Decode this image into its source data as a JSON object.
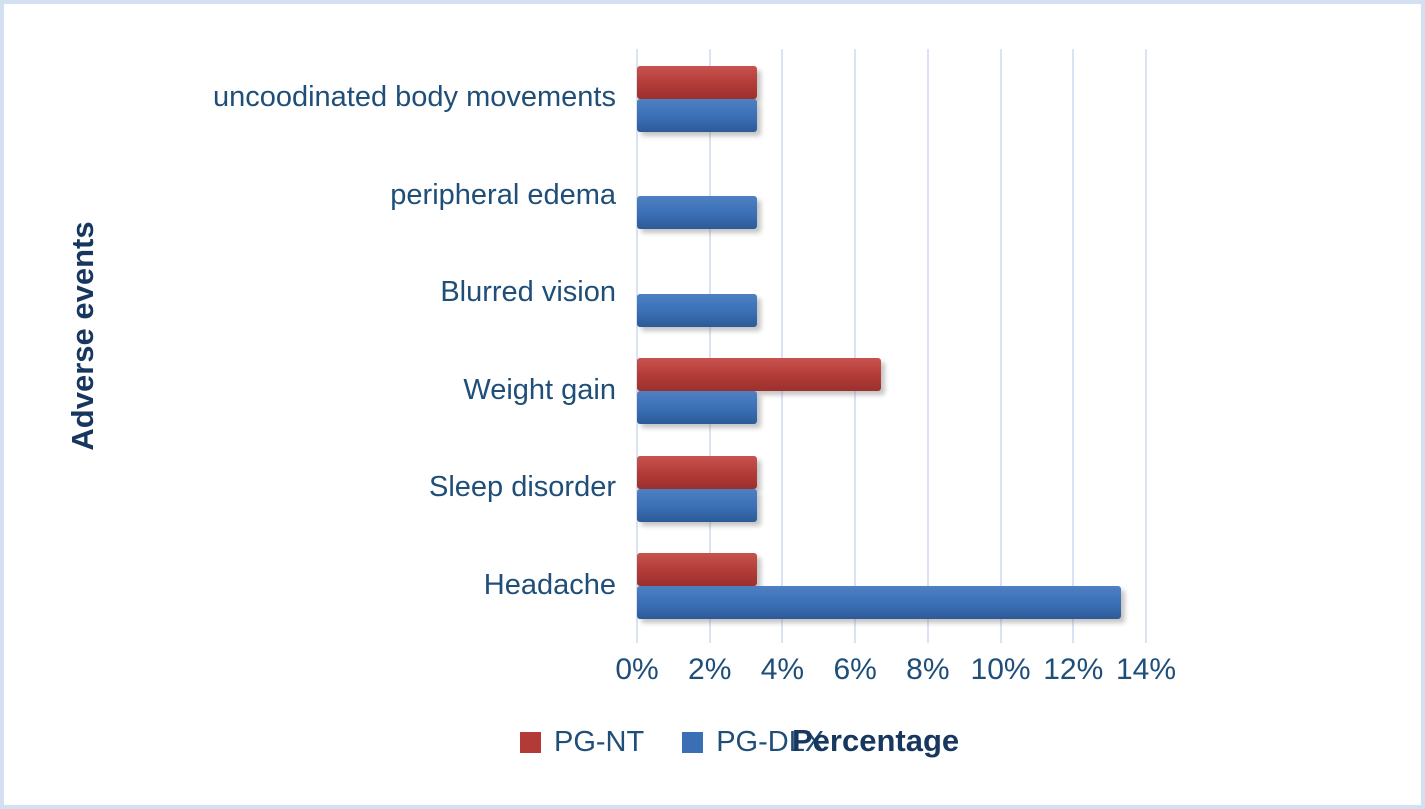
{
  "frame": {
    "border_color": "#D3E0F2",
    "background_color": "#FFFFFF"
  },
  "chart_data": {
    "type": "bar",
    "orientation": "horizontal",
    "title": "",
    "xlabel": "Percentage",
    "ylabel": "Adverse events",
    "categories": [
      "uncoodinated body movements",
      "peripheral edema",
      "Blurred vision",
      "Weight gain",
      "Sleep disorder",
      "Headache"
    ],
    "series": [
      {
        "name": "PG-NT",
        "color": "#B23B37",
        "color_top": "#C8534E",
        "color_bottom": "#9B302D",
        "values": [
          3.3,
          0,
          0,
          6.7,
          3.3,
          3.3
        ]
      },
      {
        "name": "PG-DLX",
        "color": "#3A6FB6",
        "color_top": "#4E80C2",
        "color_bottom": "#2C5A95",
        "values": [
          3.3,
          3.3,
          3.3,
          3.3,
          3.3,
          13.3
        ]
      }
    ],
    "x_ticks": [
      "0%",
      "2%",
      "4%",
      "6%",
      "8%",
      "10%",
      "12%",
      "14%"
    ],
    "xlim": [
      0,
      14
    ],
    "grid": true,
    "gridline_color": "#DAE3F3",
    "legend_position": "bottom",
    "tick_text_color": "#1F4E79",
    "axis_title_color": "#17375E"
  }
}
